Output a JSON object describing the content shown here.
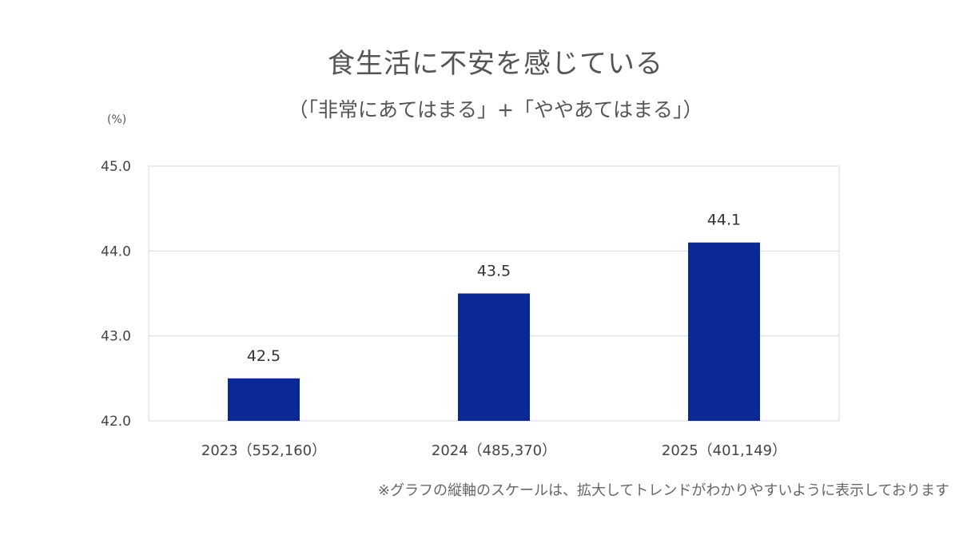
{
  "title": "食生活に不安を感じている",
  "subtitle": "（「非常にあてはまる」+「ややあてはまる」）",
  "unit_label": "(%)",
  "footnote": "※グラフの縦軸のスケールは、拡大してトレンドがわかりやすいように表示しております",
  "colors": {
    "bar": "#0A2896",
    "grid": "#D9D9D9",
    "text": "#333333"
  },
  "chart_data": {
    "type": "bar",
    "categories": [
      "2023（552,160）",
      "2024（485,370）",
      "2025（401,149）"
    ],
    "values": [
      42.5,
      43.5,
      44.1
    ],
    "data_labels": [
      "42.5",
      "43.5",
      "44.1"
    ],
    "ylim": [
      42.0,
      45.0
    ],
    "yticks": [
      "42.0",
      "43.0",
      "44.0",
      "45.0"
    ],
    "ytick_values": [
      42.0,
      43.0,
      44.0,
      45.0
    ],
    "grid": true,
    "legend": "none"
  }
}
